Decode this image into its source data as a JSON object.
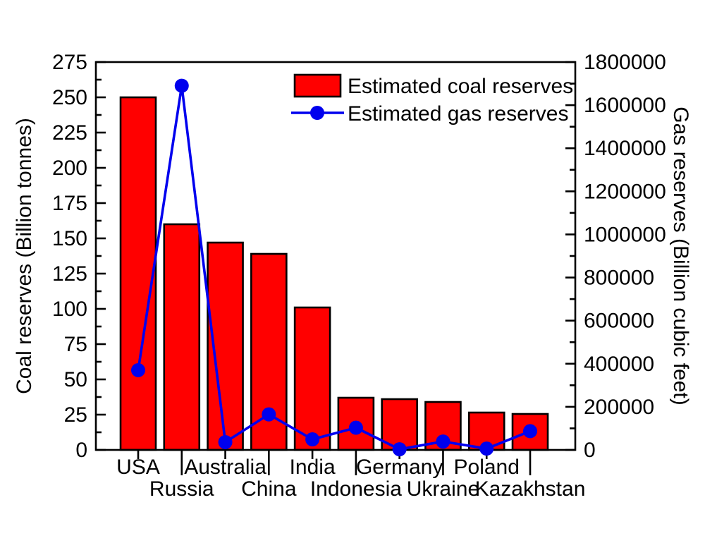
{
  "figure": {
    "background": "#ffffff",
    "text_color": "#000000"
  },
  "chart_data": {
    "type": "combo",
    "categories": [
      "USA",
      "Russia",
      "Australia",
      "China",
      "India",
      "Indonesia",
      "Germany",
      "Ukraine",
      "Poland",
      "Kazakhstan"
    ],
    "series": [
      {
        "name": "Estimated coal reserves",
        "type": "bar",
        "axis": "left",
        "color": "#ff0000",
        "edge_color": "#000000",
        "values": [
          250,
          160,
          147,
          139,
          101,
          37,
          36,
          34,
          26.5,
          25.5
        ]
      },
      {
        "name": "Estimated gas reserves",
        "type": "line",
        "axis": "right",
        "color": "#0000ee",
        "marker": "circle",
        "values": [
          370000,
          1690000,
          36000,
          165000,
          49000,
          103000,
          3000,
          39000,
          6000,
          87000
        ]
      }
    ],
    "left_axis": {
      "label": "Coal reserves (Billion tonnes)",
      "min": 0,
      "max": 275,
      "major_step": 25,
      "minor_step": 12.5
    },
    "right_axis": {
      "label": "Gas reserves (Billion cubic feet)",
      "min": 0,
      "max": 1800000,
      "major_step": 200000,
      "minor_step": 100000
    },
    "x_axis": {
      "staggered_labels": true,
      "row1_indices": [
        0,
        2,
        4,
        6,
        8
      ],
      "row2_indices": [
        1,
        3,
        5,
        7,
        9
      ]
    },
    "legend": {
      "position": "top-inside",
      "items": [
        "Estimated coal reserves",
        "Estimated gas reserves"
      ]
    },
    "grid": false,
    "title": ""
  }
}
